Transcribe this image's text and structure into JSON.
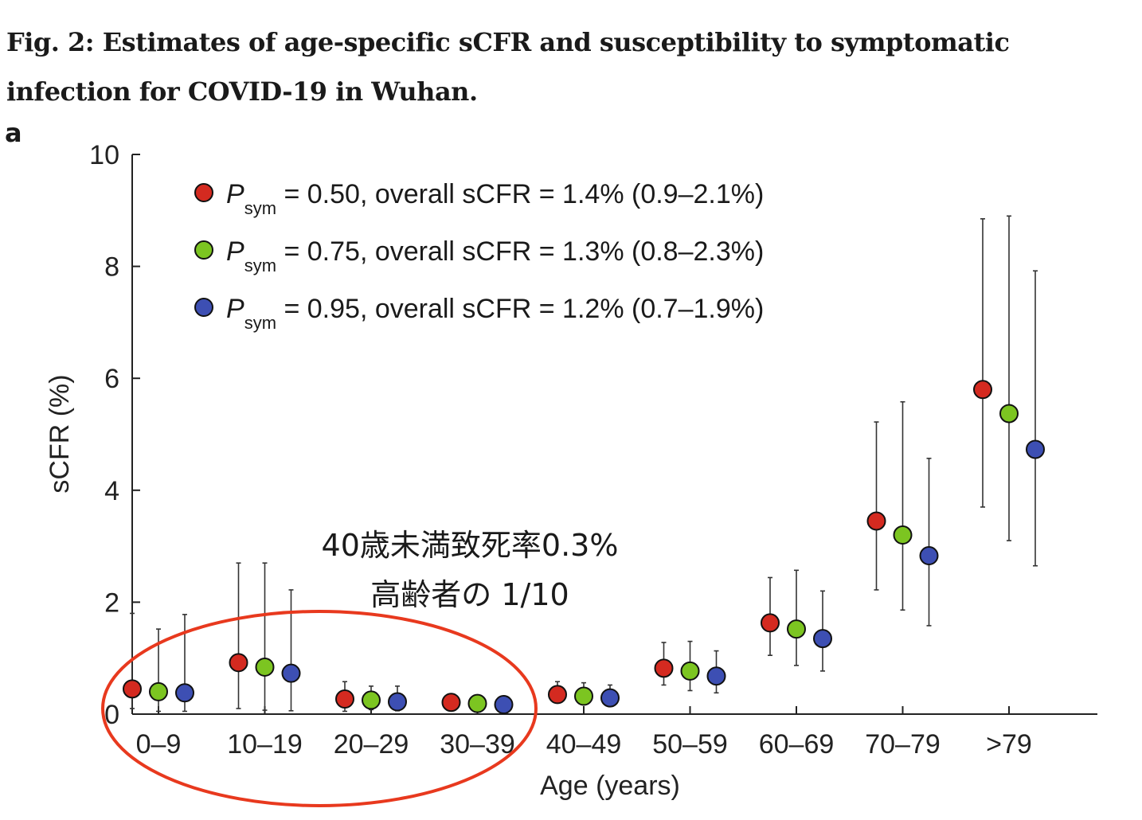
{
  "figure": {
    "title": "Fig. 2: Estimates of age-specific sCFR and susceptibility to symptomatic infection for COVID-19 in Wuhan.",
    "panel_label": "a"
  },
  "annotation": {
    "line1": "40歳未満致死率0.3%",
    "line2": "高齢者の 1/10",
    "circle_color": "#e8391e"
  },
  "chart_data": {
    "type": "scatter",
    "title": "",
    "xlabel": "Age (years)",
    "ylabel": "sCFR (%)",
    "ylim": [
      0,
      10
    ],
    "yticks": [
      0,
      2,
      4,
      6,
      8,
      10
    ],
    "grid": false,
    "legend_position": "top-left",
    "categories": [
      "0–9",
      "10–19",
      "20–29",
      "30–39",
      "40–49",
      "50–59",
      "60–69",
      "70–79",
      ">79"
    ],
    "series": [
      {
        "legend": {
          "symbol": "P",
          "subscript": "sym",
          "text": "= 0.50, overall sCFR = 1.4% (0.9–2.1%)"
        },
        "color": "#d42a20",
        "values": [
          0.45,
          0.92,
          0.27,
          0.21,
          0.35,
          0.82,
          1.63,
          3.45,
          5.8
        ],
        "lower": [
          0.1,
          0.1,
          0.05,
          0.1,
          0.25,
          0.52,
          1.05,
          2.22,
          3.7
        ],
        "upper": [
          1.8,
          2.7,
          0.58,
          0.35,
          0.58,
          1.28,
          2.44,
          5.22,
          8.85
        ]
      },
      {
        "legend": {
          "symbol": "P",
          "subscript": "sym",
          "text": "= 0.75, overall sCFR = 1.3% (0.8–2.3%)"
        },
        "color": "#7cc521",
        "values": [
          0.4,
          0.84,
          0.25,
          0.19,
          0.32,
          0.77,
          1.52,
          3.2,
          5.37
        ],
        "lower": [
          0.05,
          0.07,
          0.08,
          0.1,
          0.18,
          0.42,
          0.87,
          1.86,
          3.1
        ],
        "upper": [
          1.52,
          2.7,
          0.5,
          0.32,
          0.56,
          1.3,
          2.57,
          5.58,
          8.9
        ]
      },
      {
        "legend": {
          "symbol": "P",
          "subscript": "sym",
          "text": "= 0.95, overall sCFR = 1.2% (0.7–1.9%)"
        },
        "color": "#3d4fb3",
        "values": [
          0.38,
          0.73,
          0.22,
          0.17,
          0.29,
          0.68,
          1.35,
          2.83,
          4.73
        ],
        "lower": [
          0.05,
          0.06,
          0.06,
          0.08,
          0.15,
          0.38,
          0.77,
          1.58,
          2.65
        ],
        "upper": [
          1.78,
          2.22,
          0.5,
          0.3,
          0.52,
          1.13,
          2.2,
          4.57,
          7.92
        ]
      }
    ]
  }
}
